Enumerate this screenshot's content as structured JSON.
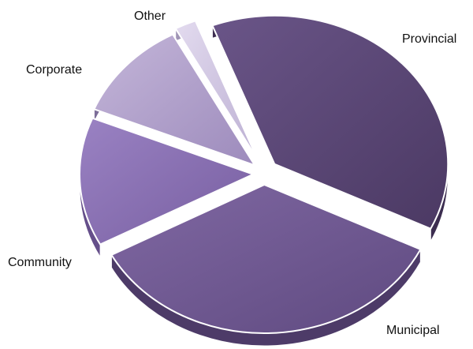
{
  "chart_data": {
    "type": "pie",
    "categories": [
      "Provincial",
      "Municipal",
      "Community",
      "Corporate",
      "Other"
    ],
    "values": [
      38,
      35,
      14,
      11,
      2
    ],
    "colors": [
      "#5a4478",
      "#735a98",
      "#8a70b5",
      "#b2a1cc",
      "#d3cae3"
    ],
    "labels": [
      "Provincial",
      "Municipal",
      "Community",
      "Corporate",
      "Other"
    ],
    "legend": "none",
    "exploded": true,
    "style": "3d"
  }
}
